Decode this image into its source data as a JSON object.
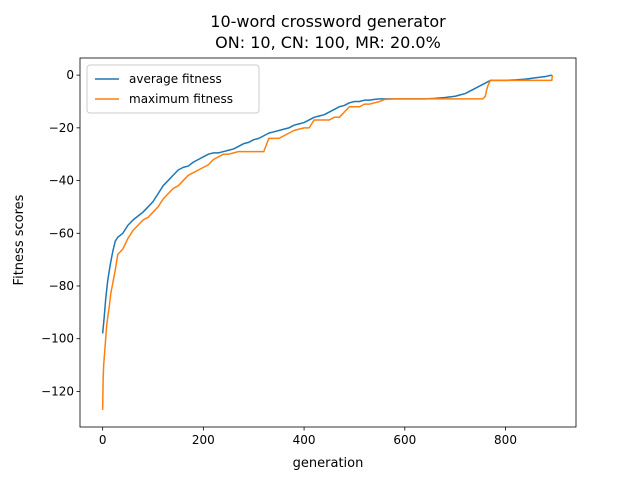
{
  "chart_data": {
    "type": "line",
    "title_line1": "10-word crossword generator",
    "title_line2": "ON: 10, CN: 100, MR: 20.0%",
    "xlabel": "generation",
    "ylabel": "Fitness scores",
    "xlim": [
      -45,
      940
    ],
    "ylim": [
      -133.5,
      6.5
    ],
    "xticks": [
      0,
      200,
      400,
      600,
      800
    ],
    "yticks": [
      0,
      -20,
      -40,
      -60,
      -80,
      -100,
      -120
    ],
    "xtick_labels": [
      "0",
      "200",
      "400",
      "600",
      "800"
    ],
    "ytick_labels": [
      "0",
      "−20",
      "−40",
      "−60",
      "−80",
      "−100",
      "−120"
    ],
    "legend_position": "upper-left",
    "series": [
      {
        "name": "average fitness",
        "color": "#1f77b4",
        "x": [
          0,
          3,
          6,
          10,
          15,
          20,
          25,
          30,
          40,
          50,
          60,
          70,
          80,
          90,
          100,
          110,
          120,
          130,
          140,
          150,
          160,
          170,
          180,
          190,
          200,
          210,
          220,
          230,
          240,
          250,
          260,
          270,
          280,
          290,
          300,
          310,
          320,
          330,
          340,
          350,
          360,
          370,
          380,
          390,
          400,
          410,
          420,
          430,
          440,
          450,
          460,
          470,
          480,
          490,
          500,
          510,
          520,
          530,
          540,
          550,
          560,
          580,
          600,
          620,
          640,
          660,
          680,
          700,
          710,
          720,
          730,
          740,
          750,
          760,
          770,
          780,
          800,
          820,
          840,
          860,
          880,
          892
        ],
        "values": [
          -98,
          -92,
          -85,
          -78,
          -72,
          -67,
          -63,
          -61.5,
          -60,
          -57,
          -55,
          -53.5,
          -52,
          -50,
          -48,
          -45,
          -42,
          -40,
          -38,
          -36,
          -35,
          -34.5,
          -33,
          -32,
          -31,
          -30,
          -29.5,
          -29.5,
          -29,
          -28.5,
          -28,
          -27,
          -26,
          -25.5,
          -24.5,
          -24,
          -23,
          -22,
          -21.5,
          -21,
          -20.5,
          -20,
          -19,
          -18.5,
          -18,
          -17,
          -16,
          -15.5,
          -15,
          -14,
          -13,
          -12,
          -11.5,
          -10.5,
          -10,
          -10,
          -9.5,
          -9.5,
          -9.2,
          -9,
          -9,
          -9,
          -9,
          -9,
          -9,
          -8.8,
          -8.5,
          -8,
          -7.5,
          -7,
          -6,
          -5,
          -4,
          -3,
          -2,
          -2,
          -2,
          -1.8,
          -1.5,
          -1,
          -0.5,
          0
        ]
      },
      {
        "name": "maximum fitness",
        "color": "#ff7f0e",
        "x": [
          0,
          1,
          2,
          4,
          6,
          8,
          10,
          13,
          16,
          20,
          25,
          30,
          40,
          50,
          60,
          70,
          80,
          90,
          100,
          110,
          120,
          130,
          140,
          150,
          160,
          170,
          180,
          190,
          200,
          210,
          220,
          230,
          240,
          250,
          260,
          270,
          280,
          290,
          300,
          310,
          320,
          330,
          340,
          350,
          360,
          370,
          380,
          390,
          400,
          410,
          420,
          430,
          440,
          450,
          460,
          470,
          480,
          490,
          500,
          510,
          520,
          530,
          540,
          550,
          560,
          580,
          600,
          620,
          640,
          660,
          680,
          700,
          720,
          740,
          755,
          760,
          762,
          765,
          770,
          800,
          840,
          870,
          892,
          893
        ],
        "values": [
          -127,
          -115,
          -110,
          -105,
          -100,
          -95,
          -92,
          -88,
          -83,
          -79,
          -74,
          -68,
          -66,
          -62,
          -59,
          -57,
          -55,
          -54,
          -52,
          -50,
          -47,
          -45,
          -43,
          -42,
          -40,
          -38,
          -37,
          -36,
          -35,
          -34,
          -32,
          -31,
          -30,
          -30,
          -29.5,
          -29,
          -29,
          -29,
          -29,
          -29,
          -29,
          -24,
          -24,
          -24,
          -23,
          -22,
          -21,
          -20.5,
          -20,
          -20,
          -17,
          -17,
          -17,
          -17,
          -16,
          -16,
          -14,
          -12,
          -12,
          -12,
          -11,
          -11,
          -10.5,
          -10,
          -9.2,
          -9,
          -9,
          -9,
          -9,
          -9,
          -9,
          -9,
          -9,
          -9,
          -9,
          -8,
          -6,
          -4,
          -2,
          -2,
          -2,
          -2,
          -2,
          0
        ]
      }
    ]
  }
}
